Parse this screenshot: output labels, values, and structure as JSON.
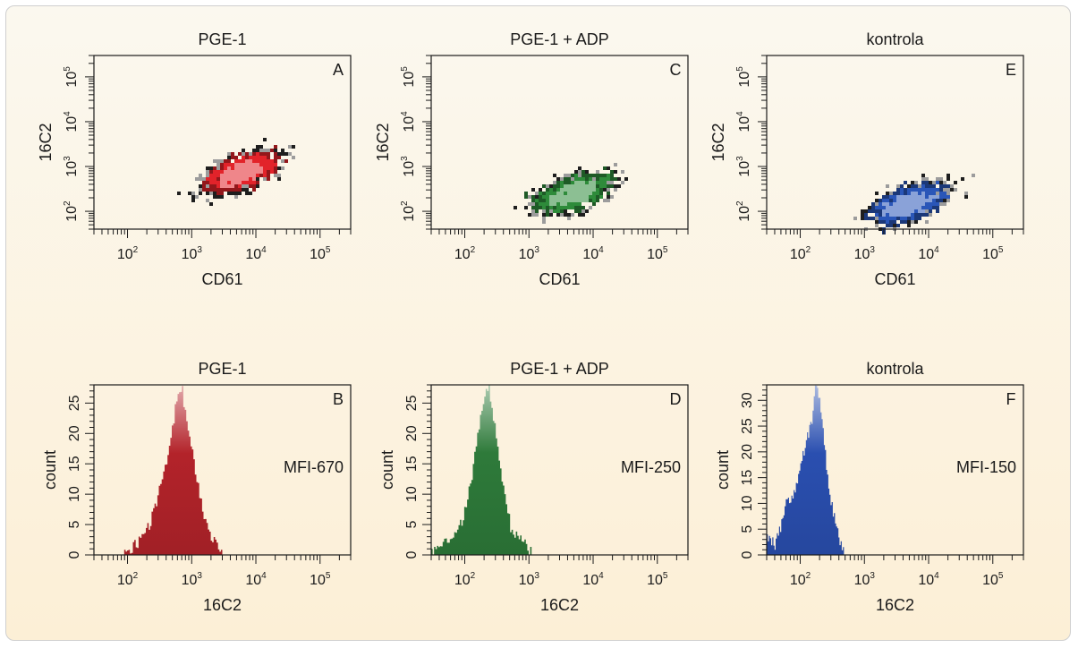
{
  "chart_data": [
    {
      "type": "scatter",
      "panel": "A",
      "title": "PGE-1",
      "xlabel": "CD61",
      "ylabel": "16C2",
      "log_x": true,
      "log_y": true,
      "xlim": [
        30,
        300000
      ],
      "ylim": [
        40,
        300000
      ],
      "xticks": [
        100,
        1000,
        10000,
        100000
      ],
      "yticks": [
        100,
        1000,
        10000,
        100000
      ],
      "color": "#e2232a",
      "population_center": [
        6000,
        700
      ]
    },
    {
      "type": "scatter",
      "panel": "C",
      "title": "PGE-1 + ADP",
      "xlabel": "CD61",
      "ylabel": "16C2",
      "log_x": true,
      "log_y": true,
      "xlim": [
        30,
        300000
      ],
      "ylim": [
        40,
        300000
      ],
      "xticks": [
        100,
        1000,
        10000,
        100000
      ],
      "yticks": [
        100,
        1000,
        10000,
        100000
      ],
      "color": "#2e8b3a",
      "population_center": [
        5000,
        250
      ]
    },
    {
      "type": "scatter",
      "panel": "E",
      "title": "kontrola",
      "xlabel": "CD61",
      "ylabel": "16C2",
      "log_x": true,
      "log_y": true,
      "xlim": [
        30,
        300000
      ],
      "ylim": [
        40,
        300000
      ],
      "xticks": [
        100,
        1000,
        10000,
        100000
      ],
      "yticks": [
        100,
        1000,
        10000,
        100000
      ],
      "color": "#2a56b8",
      "population_center": [
        5000,
        150
      ]
    },
    {
      "type": "area",
      "panel": "B",
      "title": "PGE-1",
      "xlabel": "16C2",
      "ylabel": "count",
      "log_x": true,
      "xlim": [
        30,
        300000
      ],
      "ylim": [
        0,
        28
      ],
      "xticks": [
        100,
        1000,
        10000,
        100000
      ],
      "yticks": [
        0,
        5,
        10,
        15,
        20,
        25
      ],
      "annotation": "MFI-670",
      "color": "#b3232a",
      "x": [
        80,
        100,
        150,
        200,
        250,
        300,
        400,
        500,
        600,
        700,
        800,
        1000,
        1200,
        1500,
        2000,
        2500,
        3000
      ],
      "y": [
        0,
        1,
        2,
        4,
        7,
        10,
        16,
        22,
        26,
        28,
        22,
        17,
        12,
        6,
        3,
        2,
        0
      ]
    },
    {
      "type": "area",
      "panel": "D",
      "title": "PGE-1 + ADP",
      "xlabel": "16C2",
      "ylabel": "count",
      "log_x": true,
      "xlim": [
        30,
        300000
      ],
      "ylim": [
        0,
        28
      ],
      "xticks": [
        100,
        1000,
        10000,
        100000
      ],
      "yticks": [
        0,
        5,
        10,
        15,
        20,
        25
      ],
      "annotation": "MFI-250",
      "color": "#2e7a3a",
      "x": [
        30,
        40,
        50,
        60,
        80,
        100,
        130,
        160,
        200,
        230,
        260,
        300,
        350,
        400,
        500,
        600,
        800,
        1000,
        1100
      ],
      "y": [
        1,
        1,
        2,
        2,
        5,
        7,
        14,
        21,
        26,
        28,
        24,
        20,
        15,
        10,
        5,
        3,
        2,
        1,
        0
      ]
    },
    {
      "type": "area",
      "panel": "F",
      "title": "kontrola",
      "xlabel": "16C2",
      "ylabel": "count",
      "log_x": true,
      "xlim": [
        30,
        300000
      ],
      "ylim": [
        0,
        33
      ],
      "xticks": [
        100,
        1000,
        10000,
        100000
      ],
      "yticks": [
        0,
        5,
        10,
        15,
        20,
        25,
        30
      ],
      "annotation": "MFI-150",
      "color": "#2a4fb0",
      "x": [
        30,
        40,
        50,
        60,
        70,
        80,
        100,
        120,
        150,
        170,
        200,
        230,
        260,
        300,
        350,
        400,
        450,
        500
      ],
      "y": [
        4,
        2,
        6,
        10,
        11,
        12,
        17,
        22,
        26,
        33,
        30,
        22,
        16,
        10,
        6,
        3,
        1,
        0
      ]
    }
  ]
}
